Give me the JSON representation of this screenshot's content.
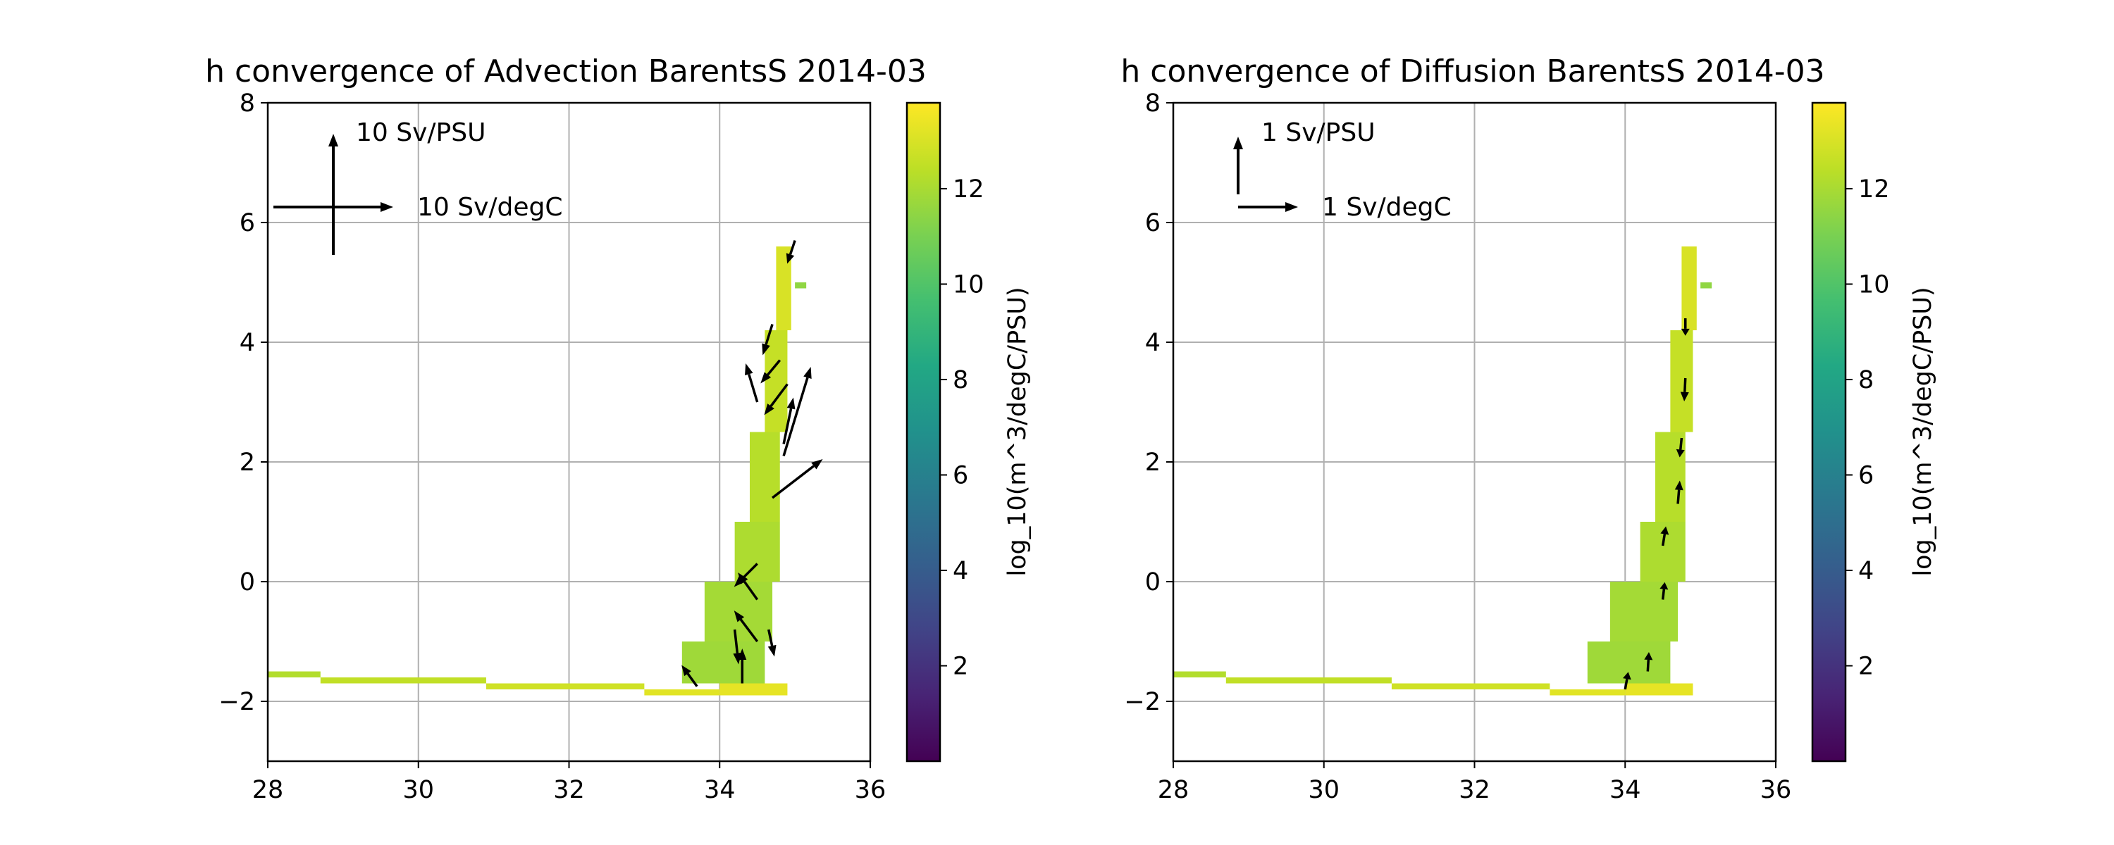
{
  "chart_data": [
    {
      "type": "heatmap",
      "title": "h convergence of Advection BarentsS 2014-03",
      "xlabel": "",
      "ylabel": "",
      "xlim": [
        28,
        36
      ],
      "ylim": [
        -3,
        8
      ],
      "xticks": [
        "28",
        "30",
        "32",
        "34",
        "36"
      ],
      "yticks": [
        "−2",
        "0",
        "2",
        "4",
        "6",
        "8"
      ],
      "grid": true,
      "colorbar": {
        "label": "log_10(m^3/degC/PSU)",
        "range": [
          0,
          13.8
        ],
        "ticks": [
          "2",
          "4",
          "6",
          "8",
          "10",
          "12"
        ]
      },
      "quiver_key": {
        "y_label": "10 Sv/PSU",
        "x_label": "10 Sv/degC"
      },
      "heatmap_cells": [
        {
          "salinity": [
            28.0,
            28.7
          ],
          "temperature": [
            -1.6,
            -1.5
          ],
          "log10_value": 12.2
        },
        {
          "salinity": [
            28.7,
            30.9
          ],
          "temperature": [
            -1.7,
            -1.6
          ],
          "log10_value": 12.5
        },
        {
          "salinity": [
            30.9,
            33.0
          ],
          "temperature": [
            -1.8,
            -1.7
          ],
          "log10_value": 12.8
        },
        {
          "salinity": [
            33.0,
            34.0
          ],
          "temperature": [
            -1.9,
            -1.8
          ],
          "log10_value": 13.2
        },
        {
          "salinity": [
            34.0,
            34.9
          ],
          "temperature": [
            -1.9,
            -1.7
          ],
          "log10_value": 13.3
        },
        {
          "salinity": [
            33.5,
            34.6
          ],
          "temperature": [
            -1.7,
            -1.0
          ],
          "log10_value": 11.8
        },
        {
          "salinity": [
            33.8,
            34.7
          ],
          "temperature": [
            -1.0,
            0.0
          ],
          "log10_value": 11.9
        },
        {
          "salinity": [
            34.2,
            34.8
          ],
          "temperature": [
            0.0,
            1.0
          ],
          "log10_value": 12.1
        },
        {
          "salinity": [
            34.4,
            34.8
          ],
          "temperature": [
            1.0,
            2.5
          ],
          "log10_value": 12.3
        },
        {
          "salinity": [
            34.6,
            34.9
          ],
          "temperature": [
            2.5,
            4.2
          ],
          "log10_value": 12.6
        },
        {
          "salinity": [
            34.75,
            34.95
          ],
          "temperature": [
            4.2,
            5.6
          ],
          "log10_value": 13.0
        },
        {
          "salinity": [
            35.0,
            35.15
          ],
          "temperature": [
            4.9,
            5.0
          ],
          "log10_value": 11.5
        }
      ],
      "vectors": [
        {
          "x": 33.7,
          "y": -1.75,
          "u": -0.4,
          "v": 0.55
        },
        {
          "x": 34.3,
          "y": -1.7,
          "u": 0.0,
          "v": 0.9
        },
        {
          "x": 34.2,
          "y": -0.8,
          "u": 0.1,
          "v": -0.9
        },
        {
          "x": 34.5,
          "y": -1.0,
          "u": -0.6,
          "v": 0.8
        },
        {
          "x": 34.5,
          "y": -0.3,
          "u": -0.5,
          "v": 0.7
        },
        {
          "x": 34.65,
          "y": -0.8,
          "u": 0.15,
          "v": -0.7
        },
        {
          "x": 34.5,
          "y": 0.3,
          "u": -0.6,
          "v": -0.6
        },
        {
          "x": 34.7,
          "y": 1.4,
          "u": 1.3,
          "v": 1.0
        },
        {
          "x": 34.85,
          "y": 2.1,
          "u": 0.7,
          "v": 2.3
        },
        {
          "x": 34.85,
          "y": 2.3,
          "u": 0.25,
          "v": 1.2
        },
        {
          "x": 34.5,
          "y": 3.0,
          "u": -0.3,
          "v": 1.0
        },
        {
          "x": 34.9,
          "y": 3.3,
          "u": -0.6,
          "v": -0.8
        },
        {
          "x": 34.8,
          "y": 3.7,
          "u": -0.5,
          "v": -0.6
        },
        {
          "x": 34.7,
          "y": 4.3,
          "u": -0.25,
          "v": -0.8
        },
        {
          "x": 35.0,
          "y": 5.7,
          "u": -0.2,
          "v": -0.6
        }
      ]
    },
    {
      "type": "heatmap",
      "title": "h convergence of Diffusion BarentsS 2014-03",
      "xlabel": "",
      "ylabel": "",
      "xlim": [
        28,
        36
      ],
      "ylim": [
        -3,
        8
      ],
      "xticks": [
        "28",
        "30",
        "32",
        "34",
        "36"
      ],
      "yticks": [
        "−2",
        "0",
        "2",
        "4",
        "6",
        "8"
      ],
      "grid": true,
      "colorbar": {
        "label": "log_10(m^3/degC/PSU)",
        "range": [
          0,
          13.8
        ],
        "ticks": [
          "2",
          "4",
          "6",
          "8",
          "10",
          "12"
        ]
      },
      "quiver_key": {
        "y_label": "1 Sv/PSU",
        "x_label": "1 Sv/degC"
      },
      "heatmap_cells": [
        {
          "salinity": [
            28.0,
            28.7
          ],
          "temperature": [
            -1.6,
            -1.5
          ],
          "log10_value": 12.2
        },
        {
          "salinity": [
            28.7,
            30.9
          ],
          "temperature": [
            -1.7,
            -1.6
          ],
          "log10_value": 12.5
        },
        {
          "salinity": [
            30.9,
            33.0
          ],
          "temperature": [
            -1.8,
            -1.7
          ],
          "log10_value": 12.8
        },
        {
          "salinity": [
            33.0,
            34.0
          ],
          "temperature": [
            -1.9,
            -1.8
          ],
          "log10_value": 13.2
        },
        {
          "salinity": [
            34.0,
            34.9
          ],
          "temperature": [
            -1.9,
            -1.7
          ],
          "log10_value": 13.3
        },
        {
          "salinity": [
            33.5,
            34.6
          ],
          "temperature": [
            -1.7,
            -1.0
          ],
          "log10_value": 11.8
        },
        {
          "salinity": [
            33.8,
            34.7
          ],
          "temperature": [
            -1.0,
            0.0
          ],
          "log10_value": 11.9
        },
        {
          "salinity": [
            34.2,
            34.8
          ],
          "temperature": [
            0.0,
            1.0
          ],
          "log10_value": 12.1
        },
        {
          "salinity": [
            34.4,
            34.8
          ],
          "temperature": [
            1.0,
            2.5
          ],
          "log10_value": 12.3
        },
        {
          "salinity": [
            34.6,
            34.9
          ],
          "temperature": [
            2.5,
            4.2
          ],
          "log10_value": 12.6
        },
        {
          "salinity": [
            34.75,
            34.95
          ],
          "temperature": [
            4.2,
            5.6
          ],
          "log10_value": 13.0
        },
        {
          "salinity": [
            35.0,
            35.15
          ],
          "temperature": [
            4.9,
            5.0
          ],
          "log10_value": 11.5
        }
      ],
      "vectors": [
        {
          "x": 34.0,
          "y": -1.8,
          "u": 0.08,
          "v": 0.45
        },
        {
          "x": 34.3,
          "y": -1.5,
          "u": 0.03,
          "v": 0.5
        },
        {
          "x": 34.5,
          "y": -0.3,
          "u": 0.05,
          "v": 0.45
        },
        {
          "x": 34.5,
          "y": 0.6,
          "u": 0.08,
          "v": 0.5
        },
        {
          "x": 34.7,
          "y": 1.3,
          "u": 0.05,
          "v": 0.6
        },
        {
          "x": 34.75,
          "y": 2.4,
          "u": -0.05,
          "v": -0.5
        },
        {
          "x": 34.8,
          "y": 3.4,
          "u": -0.03,
          "v": -0.6
        },
        {
          "x": 34.8,
          "y": 4.4,
          "u": 0.0,
          "v": -0.45
        }
      ]
    }
  ]
}
